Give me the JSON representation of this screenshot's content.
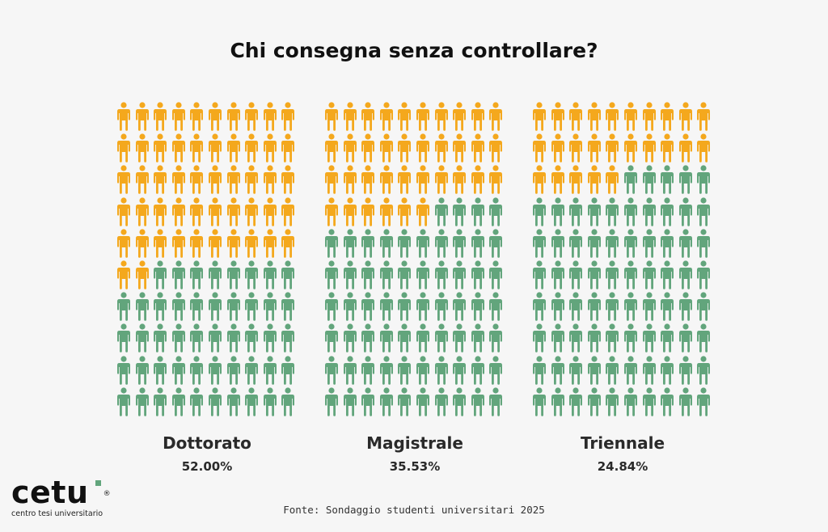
{
  "chart_data": {
    "type": "pictogram",
    "title": "Chi consegna senza controllare?",
    "icons_per_panel": 100,
    "grid_columns": 10,
    "grid_rows": 10,
    "colors": {
      "highlight": "#f4a81d",
      "rest": "#62a57c"
    },
    "panels": [
      {
        "label": "Dottorato",
        "value_label": "52.00%",
        "value": 52.0,
        "highlighted_icons": 52
      },
      {
        "label": "Magistrale",
        "value_label": "35.53%",
        "value": 35.53,
        "highlighted_icons": 36
      },
      {
        "label": "Triennale",
        "value_label": "24.84%",
        "value": 24.84,
        "highlighted_icons": 25
      }
    ]
  },
  "source": "Fonte: Sondaggio studenti universitari 2025",
  "logo": {
    "word": "cetu",
    "tagline": "centro tesi universitario",
    "registered": "®"
  }
}
